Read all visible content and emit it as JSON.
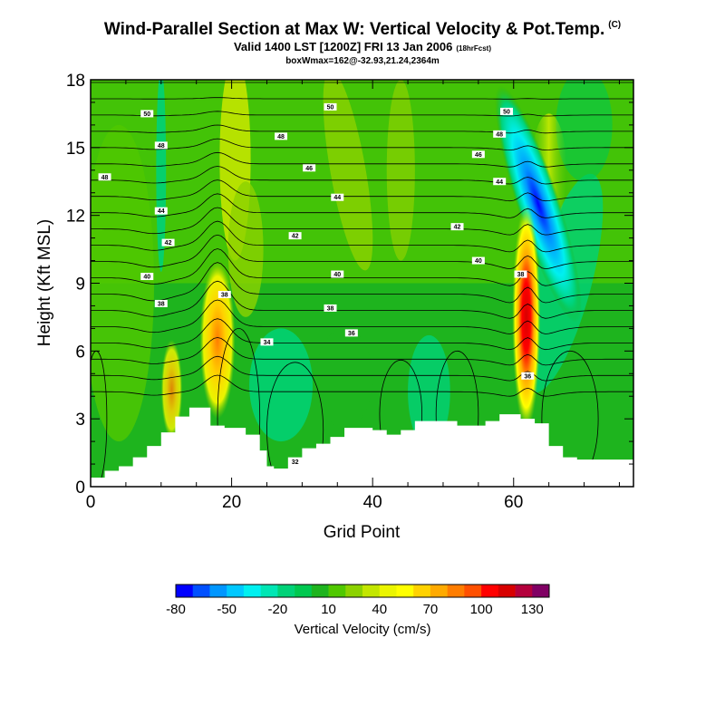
{
  "header": {
    "title": "Wind-Parallel Section at Max W: Vertical Velocity & Pot.Temp.",
    "title_badge": "(C)",
    "subtitle": "Valid 1400 LST [1200Z] FRI 13 Jan 2006",
    "subtitle_badge": "(18hrFcst)",
    "info": "boxWmax=162@-32.93,21.24,2364m"
  },
  "chart_data": {
    "type": "heatmap",
    "xlabel": "Grid Point",
    "ylabel": "Height (Kft MSL)",
    "xlim": [
      0,
      77
    ],
    "ylim": [
      0,
      18
    ],
    "xticks": [
      0,
      20,
      40,
      60
    ],
    "yticks": [
      0,
      3,
      6,
      9,
      12,
      15,
      18
    ],
    "colorbar": {
      "label": "Vertical Velocity (cm/s)",
      "tick_labels": [
        "-80",
        "-50",
        "-20",
        "10",
        "40",
        "70",
        "100",
        "130"
      ],
      "levels": [
        -80,
        -70,
        -60,
        -50,
        -40,
        -30,
        -20,
        -10,
        0,
        10,
        20,
        30,
        40,
        50,
        60,
        70,
        80,
        90,
        100,
        110,
        120,
        130,
        140
      ],
      "colors": [
        "#0000ff",
        "#0050ff",
        "#0096ff",
        "#00c8ff",
        "#00f0f0",
        "#00e6b4",
        "#00d278",
        "#00c850",
        "#1eb41e",
        "#50c800",
        "#8cd200",
        "#c3e600",
        "#ebf500",
        "#ffff00",
        "#ffd200",
        "#ffaa00",
        "#ff7d00",
        "#ff5000",
        "#ff0000",
        "#d70000",
        "#b4003c",
        "#800064"
      ]
    },
    "contour_labels": [
      {
        "text": "50",
        "x": 8,
        "y": 16.5
      },
      {
        "text": "48",
        "x": 10,
        "y": 15.1
      },
      {
        "text": "48",
        "x": 2,
        "y": 13.7
      },
      {
        "text": "44",
        "x": 10,
        "y": 12.2
      },
      {
        "text": "42",
        "x": 11,
        "y": 10.8
      },
      {
        "text": "40",
        "x": 8,
        "y": 9.3
      },
      {
        "text": "38",
        "x": 10,
        "y": 8.1
      },
      {
        "text": "38",
        "x": 19,
        "y": 8.5
      },
      {
        "text": "34",
        "x": 25,
        "y": 6.4
      },
      {
        "text": "32",
        "x": 29,
        "y": 1.1
      },
      {
        "text": "50",
        "x": 34,
        "y": 16.8
      },
      {
        "text": "48",
        "x": 27,
        "y": 15.5
      },
      {
        "text": "46",
        "x": 31,
        "y": 14.1
      },
      {
        "text": "44",
        "x": 35,
        "y": 12.8
      },
      {
        "text": "42",
        "x": 29,
        "y": 11.1
      },
      {
        "text": "40",
        "x": 35,
        "y": 9.4
      },
      {
        "text": "38",
        "x": 34,
        "y": 7.9
      },
      {
        "text": "36",
        "x": 37,
        "y": 6.8
      },
      {
        "text": "50",
        "x": 59,
        "y": 16.6
      },
      {
        "text": "48",
        "x": 58,
        "y": 15.6
      },
      {
        "text": "46",
        "x": 55,
        "y": 14.7
      },
      {
        "text": "44",
        "x": 58,
        "y": 13.5
      },
      {
        "text": "42",
        "x": 52,
        "y": 11.5
      },
      {
        "text": "40",
        "x": 55,
        "y": 10.0
      },
      {
        "text": "38",
        "x": 61,
        "y": 9.4
      },
      {
        "text": "36",
        "x": 62,
        "y": 4.9
      }
    ]
  }
}
